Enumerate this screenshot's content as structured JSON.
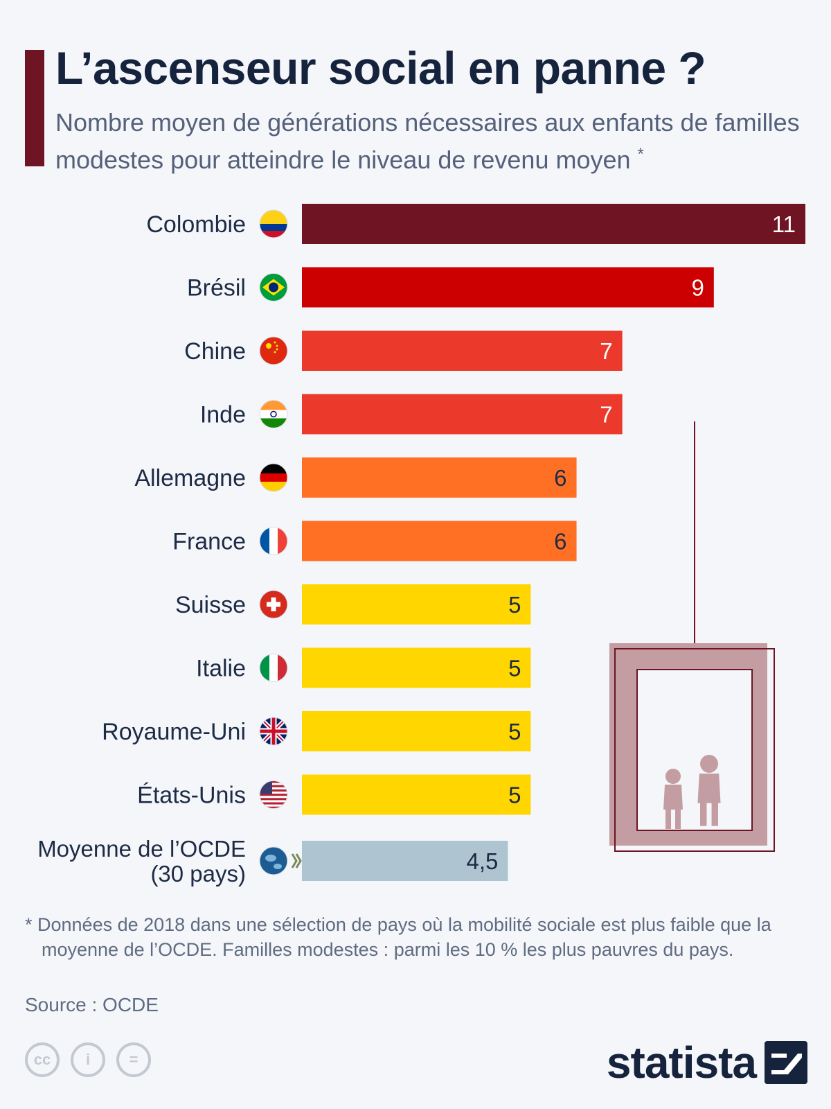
{
  "header": {
    "title": "L’ascenseur social en panne ?",
    "subtitle": "Nombre moyen de générations nécessaires aux enfants de familles modestes pour atteindre le niveau de revenu moyen",
    "subtitle_mark": "*"
  },
  "chart_data": {
    "type": "bar",
    "orientation": "horizontal",
    "categories": [
      "Colombie",
      "Brésil",
      "Chine",
      "Inde",
      "Allemagne",
      "France",
      "Suisse",
      "Italie",
      "Royaume-Uni",
      "États-Unis",
      "Moyenne de l’OCDE (30 pays)"
    ],
    "values": [
      11,
      9,
      7,
      7,
      6,
      6,
      5,
      5,
      5,
      5,
      4.5
    ],
    "value_labels": [
      "11",
      "9",
      "7",
      "7",
      "6",
      "6",
      "5",
      "5",
      "5",
      "5",
      "4,5"
    ],
    "colors": [
      "#6e1423",
      "#cc0000",
      "#eb3a2b",
      "#eb3a2b",
      "#ff6f24",
      "#ff6f24",
      "#ffd600",
      "#ffd600",
      "#ffd600",
      "#ffd600",
      "#aec5d1"
    ],
    "label_colors": [
      "#ffffff",
      "#ffffff",
      "#ffffff",
      "#ffffff",
      "#1d2b45",
      "#1d2b45",
      "#1d2b45",
      "#1d2b45",
      "#1d2b45",
      "#1d2b45",
      "#1d2b45"
    ],
    "flags": [
      "colombia-flag-icon",
      "brazil-flag-icon",
      "china-flag-icon",
      "india-flag-icon",
      "germany-flag-icon",
      "france-flag-icon",
      "switzerland-flag-icon",
      "italy-flag-icon",
      "uk-flag-icon",
      "usa-flag-icon",
      "oecd-globe-icon"
    ],
    "xlim": [
      0,
      11
    ],
    "grid": false
  },
  "illustration": "elevator-with-children-icon",
  "footnote": "* Données de 2018 dans une sélection de pays où la mobilité sociale est plus faible que la moyenne de l’OCDE. Familles modestes : parmi les 10 % les plus pauvres du pays.",
  "source": "Source : OCDE",
  "branding": {
    "license_icons": [
      "cc-icon",
      "attribution-icon",
      "no-derivatives-icon"
    ],
    "license_glyphs": [
      "cc",
      "i",
      "="
    ],
    "logo": "statista"
  }
}
